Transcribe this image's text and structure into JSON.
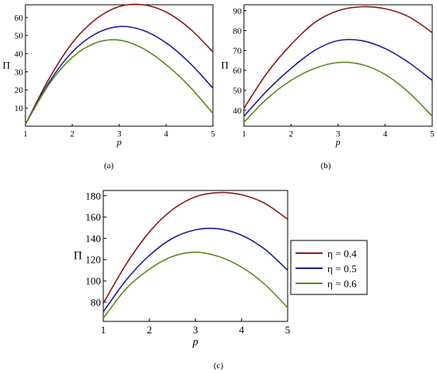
{
  "captions": {
    "a": "(a)",
    "b": "(b)",
    "c": "(c)"
  },
  "legend": {
    "entries": [
      "η = 0.4",
      "η = 0.5",
      "η = 0.6"
    ],
    "colors": [
      "#8b1a1a",
      "#1f1f9e",
      "#5a8c1e"
    ]
  },
  "chart_data": [
    {
      "type": "line",
      "panel": "a",
      "xlabel": "p",
      "ylabel": "Π",
      "xlim": [
        1,
        5
      ],
      "ylim": [
        0,
        67
      ],
      "xticks": [
        1,
        2,
        3,
        4,
        5
      ],
      "yticks": [
        10,
        20,
        30,
        40,
        50,
        60
      ],
      "grid": false,
      "x": [
        1,
        1.5,
        2,
        2.5,
        3,
        3.5,
        4,
        4.5,
        5
      ],
      "series": [
        {
          "color": "#8b1a1a",
          "values": [
            1,
            26,
            46,
            59,
            66,
            67,
            63,
            54,
            41
          ]
        },
        {
          "color": "#1f1f9e",
          "values": [
            1,
            24,
            41,
            51,
            55,
            53,
            46,
            35,
            21
          ]
        },
        {
          "color": "#5a8c1e",
          "values": [
            1,
            23,
            38,
            46,
            47.5,
            43,
            34,
            22,
            7
          ]
        }
      ]
    },
    {
      "type": "line",
      "panel": "b",
      "xlabel": "p",
      "ylabel": "Π",
      "xlim": [
        1,
        5
      ],
      "ylim": [
        32,
        93
      ],
      "xticks": [
        1,
        2,
        3,
        4,
        5
      ],
      "yticks": [
        40,
        50,
        60,
        70,
        80,
        90
      ],
      "grid": false,
      "x": [
        1,
        1.5,
        2,
        2.5,
        3,
        3.5,
        4,
        4.5,
        5
      ],
      "series": [
        {
          "color": "#8b1a1a",
          "values": [
            41,
            59,
            73,
            84,
            90,
            92,
            91,
            87,
            79
          ]
        },
        {
          "color": "#1f1f9e",
          "values": [
            37,
            50,
            61,
            70,
            75,
            75,
            71,
            64,
            55
          ]
        },
        {
          "color": "#5a8c1e",
          "values": [
            34,
            46,
            55,
            61,
            64,
            63,
            58,
            49,
            37
          ]
        }
      ]
    },
    {
      "type": "line",
      "panel": "c",
      "xlabel": "p",
      "ylabel": "Π",
      "xlim": [
        1,
        5
      ],
      "ylim": [
        62,
        185
      ],
      "xticks": [
        1,
        2,
        3,
        4,
        5
      ],
      "yticks": [
        80,
        100,
        120,
        140,
        160,
        180
      ],
      "grid": false,
      "legend": "right",
      "x": [
        1,
        1.5,
        2,
        2.5,
        3,
        3.5,
        4,
        4.5,
        5
      ],
      "series": [
        {
          "name": "η = 0.4",
          "color": "#8b1a1a",
          "values": [
            79,
            116,
            146,
            167,
            179,
            183,
            181,
            173,
            158
          ]
        },
        {
          "name": "η = 0.5",
          "color": "#1f1f9e",
          "values": [
            71,
            101,
            124,
            140,
            148,
            149,
            143,
            130,
            110
          ]
        },
        {
          "name": "η = 0.6",
          "color": "#5a8c1e",
          "values": [
            65,
            93,
            111,
            123,
            127,
            123,
            113,
            97,
            75
          ]
        }
      ]
    }
  ]
}
